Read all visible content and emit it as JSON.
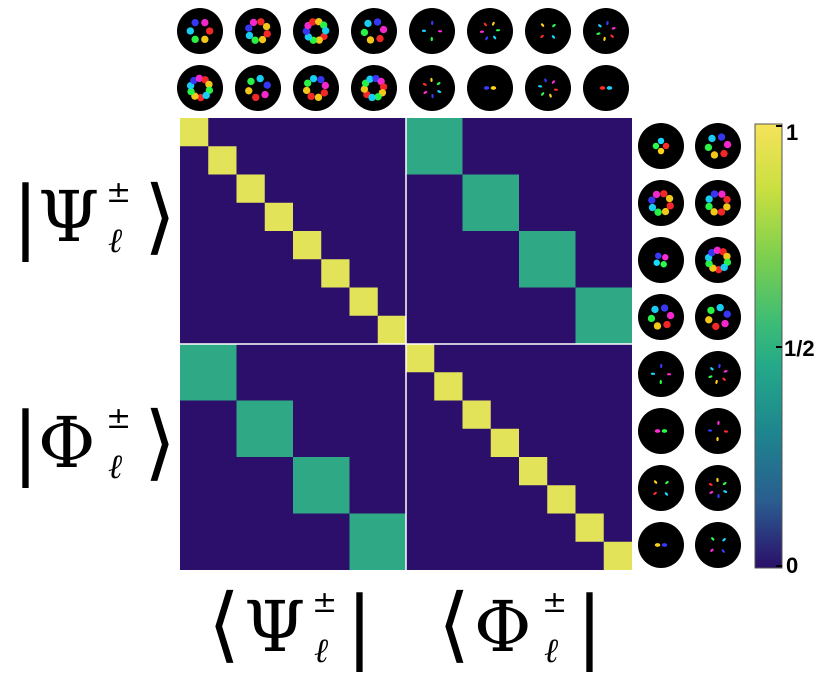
{
  "labels": {
    "row_top": {
      "symbol": "Ψ",
      "sup": "±",
      "sub": "ℓ"
    },
    "row_bottom": {
      "symbol": "Φ",
      "sup": "±",
      "sub": "ℓ"
    },
    "col_left": {
      "symbol": "Ψ",
      "sup": "±",
      "sub": "ℓ"
    },
    "col_right": {
      "symbol": "Φ",
      "sup": "±",
      "sub": "ℓ"
    }
  },
  "colorbar": {
    "ticks": [
      "1",
      "1/2",
      "0"
    ],
    "colors": [
      "#f3e35a",
      "#90d543",
      "#2fb47c",
      "#23898e",
      "#2c6f8e",
      "#3e4989",
      "#48186a",
      "#25004f"
    ]
  },
  "matrix": {
    "background": "#2b0f6a",
    "high_color": "#e3e35a",
    "mid_color": "#2fa886",
    "divider": "#ffffff"
  }
}
